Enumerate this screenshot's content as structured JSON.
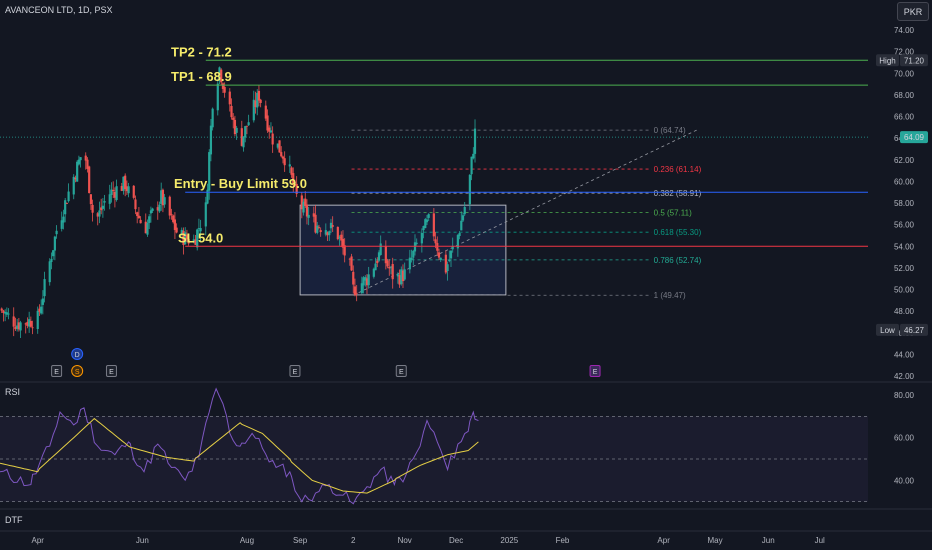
{
  "header": {
    "title": "AVANCEON LTD, 1D, PSX",
    "currency_button": "PKR"
  },
  "colors": {
    "background": "#131722",
    "up": "#26a69a",
    "down": "#ef5350",
    "rsi": "#7e57c2",
    "rsi_ma": "#e5cf45",
    "tp_line": "#4caf50",
    "sl_line": "#f23645",
    "entry_line": "#2962ff",
    "box_fill": "#1a2340",
    "box_border": "#b2b5be",
    "annotation": "#f5eb6b",
    "last_price_bg": "#26a69a"
  },
  "chart_data": [
    {
      "type": "candlestick",
      "title": "AVANCEON LTD, 1D, PSX",
      "ylim": [
        42,
        74
      ],
      "y_ticks": [
        "74.00",
        "72.00",
        "70.00",
        "68.00",
        "66.00",
        "64.00",
        "62.00",
        "60.00",
        "58.00",
        "56.00",
        "54.00",
        "52.00",
        "50.00",
        "48.00",
        "46.00",
        "44.00",
        "42.00"
      ],
      "x_ticks": [
        "Apr",
        "Jun",
        "Aug",
        "Sep",
        "2",
        "Nov",
        "Dec",
        "2025",
        "Feb",
        "Apr",
        "May",
        "Jun",
        "Jul"
      ],
      "x_tick_dates": [
        "2024-04-01",
        "2024-06-01",
        "2024-08-01",
        "2024-09-01",
        "2024-10-02",
        "2024-11-01",
        "2024-12-01",
        "2025-01-01",
        "2025-02-01",
        "2025-04-01",
        "2025-05-01",
        "2025-06-01",
        "2025-07-01"
      ],
      "price_path": [
        [
          "2024-03-10",
          48.2
        ],
        [
          "2024-03-20",
          46.8
        ],
        [
          "2024-04-01",
          47.3
        ],
        [
          "2024-04-12",
          55.5
        ],
        [
          "2024-04-20",
          59.5
        ],
        [
          "2024-04-28",
          63.2
        ],
        [
          "2024-05-04",
          56.0
        ],
        [
          "2024-05-12",
          58.8
        ],
        [
          "2024-05-22",
          59.8
        ],
        [
          "2024-06-02",
          55.5
        ],
        [
          "2024-06-12",
          58.5
        ],
        [
          "2024-06-22",
          55.0
        ],
        [
          "2024-07-01",
          54.5
        ],
        [
          "2024-07-08",
          57.5
        ],
        [
          "2024-07-12",
          67.5
        ],
        [
          "2024-07-16",
          70.5
        ],
        [
          "2024-07-22",
          66.5
        ],
        [
          "2024-07-28",
          63.5
        ],
        [
          "2024-08-03",
          66.0
        ],
        [
          "2024-08-08",
          68.0
        ],
        [
          "2024-08-16",
          64.0
        ],
        [
          "2024-08-24",
          62.0
        ],
        [
          "2024-08-31",
          58.0
        ],
        [
          "2024-09-10",
          56.0
        ],
        [
          "2024-09-22",
          55.5
        ],
        [
          "2024-09-30",
          52.0
        ],
        [
          "2024-10-02",
          50.0
        ],
        [
          "2024-10-10",
          51.0
        ],
        [
          "2024-10-18",
          53.5
        ],
        [
          "2024-10-26",
          51.0
        ],
        [
          "2024-11-02",
          51.5
        ],
        [
          "2024-11-10",
          55.0
        ],
        [
          "2024-11-16",
          56.5
        ],
        [
          "2024-11-24",
          51.5
        ],
        [
          "2024-12-02",
          55.0
        ],
        [
          "2024-12-08",
          59.0
        ],
        [
          "2024-12-12",
          64.5
        ]
      ],
      "last_price": "64.09",
      "high": {
        "label": "High",
        "value": "71.20"
      },
      "low": {
        "label": "Low",
        "value": "46.27"
      }
    },
    {
      "type": "fibonacci",
      "levels": [
        {
          "ratio": "0",
          "value": 64.74,
          "label": "0 (64.74)",
          "color": "#787b86"
        },
        {
          "ratio": "0.236",
          "value": 61.14,
          "label": "0.236 (61.14)",
          "color": "#f23645"
        },
        {
          "ratio": "0.382",
          "value": 58.91,
          "label": "0.382 (58.91)",
          "color": "#b2b5be"
        },
        {
          "ratio": "0.5",
          "value": 57.11,
          "label": "0.5 (57.11)",
          "color": "#4caf50"
        },
        {
          "ratio": "0.618",
          "value": 55.3,
          "label": "0.618 (55.30)",
          "color": "#089981"
        },
        {
          "ratio": "0.786",
          "value": 52.74,
          "label": "0.786 (52.74)",
          "color": "#22ab94"
        },
        {
          "ratio": "1",
          "value": 49.47,
          "label": "1 (49.47)",
          "color": "#787b86"
        }
      ],
      "start_date": "2024-10-02",
      "end_date": "2024-12-14"
    },
    {
      "type": "annotations",
      "tp2": {
        "label": "TP2 -  71.2",
        "value": 71.2
      },
      "tp1": {
        "label": "TP1 -  68.9",
        "value": 68.9
      },
      "entry": {
        "label": "Entry - Buy Limit 59.0",
        "value": 59.0
      },
      "sl": {
        "label": "SL 54.0",
        "value": 54.0
      },
      "range_box": {
        "top": 57.8,
        "bottom": 49.5,
        "from": "2024-09-01",
        "to": "2024-12-30"
      },
      "events": [
        {
          "label": "D",
          "date": "2024-04-24"
        },
        {
          "label": "E",
          "date": "2024-04-12"
        },
        {
          "label": "S",
          "date": "2024-04-24"
        },
        {
          "label": "E",
          "date": "2024-05-14"
        },
        {
          "label": "E",
          "date": "2024-08-29"
        },
        {
          "label": "E",
          "date": "2024-10-30"
        },
        {
          "label": "E",
          "date": "2025-02-20"
        }
      ]
    },
    {
      "type": "line",
      "title": "RSI",
      "ylim": [
        27,
        88
      ],
      "y_ticks": [
        "80.00",
        "60.00",
        "40.00"
      ],
      "bands": [
        70,
        50,
        30
      ],
      "series": [
        {
          "values": [
            [
              "2024-03-10",
              44
            ],
            [
              "2024-03-28",
              38
            ],
            [
              "2024-04-08",
              56
            ],
            [
              "2024-04-14",
              72
            ],
            [
              "2024-04-22",
              66
            ],
            [
              "2024-04-28",
              74
            ],
            [
              "2024-05-06",
              56
            ],
            [
              "2024-05-16",
              52
            ],
            [
              "2024-05-24",
              58
            ],
            [
              "2024-06-02",
              44
            ],
            [
              "2024-06-10",
              57
            ],
            [
              "2024-06-18",
              46
            ],
            [
              "2024-06-26",
              40
            ],
            [
              "2024-07-04",
              51
            ],
            [
              "2024-07-10",
              72
            ],
            [
              "2024-07-14",
              83
            ],
            [
              "2024-07-18",
              76
            ],
            [
              "2024-07-22",
              62
            ],
            [
              "2024-07-28",
              56
            ],
            [
              "2024-08-04",
              62
            ],
            [
              "2024-08-10",
              55
            ],
            [
              "2024-08-18",
              46
            ],
            [
              "2024-08-26",
              44
            ],
            [
              "2024-09-02",
              30
            ],
            [
              "2024-09-10",
              34
            ],
            [
              "2024-09-18",
              38
            ],
            [
              "2024-09-26",
              33
            ],
            [
              "2024-10-02",
              29
            ],
            [
              "2024-10-10",
              37
            ],
            [
              "2024-10-18",
              45
            ],
            [
              "2024-10-26",
              38
            ],
            [
              "2024-11-02",
              43
            ],
            [
              "2024-11-10",
              56
            ],
            [
              "2024-11-14",
              68
            ],
            [
              "2024-11-20",
              58
            ],
            [
              "2024-11-26",
              45
            ],
            [
              "2024-12-02",
              57
            ],
            [
              "2024-12-08",
              63
            ],
            [
              "2024-12-11",
              72
            ],
            [
              "2024-12-14",
              68
            ]
          ]
        },
        {
          "values": [
            [
              "2024-03-10",
              48
            ],
            [
              "2024-04-01",
              44
            ],
            [
              "2024-04-22",
              60
            ],
            [
              "2024-05-04",
              69
            ],
            [
              "2024-05-24",
              56
            ],
            [
              "2024-06-14",
              51
            ],
            [
              "2024-07-01",
              49
            ],
            [
              "2024-07-14",
              58
            ],
            [
              "2024-07-28",
              67
            ],
            [
              "2024-08-10",
              62
            ],
            [
              "2024-08-26",
              50
            ],
            [
              "2024-09-08",
              40
            ],
            [
              "2024-09-26",
              35
            ],
            [
              "2024-10-10",
              34
            ],
            [
              "2024-10-26",
              40
            ],
            [
              "2024-11-10",
              47
            ],
            [
              "2024-11-26",
              52
            ],
            [
              "2024-12-08",
              54
            ],
            [
              "2024-12-14",
              58
            ]
          ]
        }
      ]
    }
  ],
  "indicators": {
    "rsi_label": "RSI",
    "dtf_label": "DTF"
  }
}
